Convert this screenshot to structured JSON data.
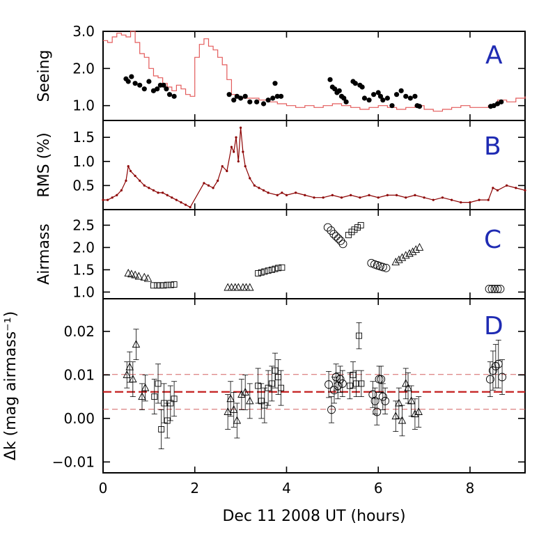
{
  "colors": {
    "seeing_line": "#e35a5a",
    "rms_line": "#8b0000",
    "k_mean": "#c41e1e",
    "k_band": "#d46060",
    "panel_letter": "#1f2bb3",
    "axes": "#000000"
  },
  "x_axis": {
    "label": "Dec 11 2008 UT (hours)",
    "range": [
      0,
      9.2
    ],
    "ticks": [
      0,
      2,
      4,
      6,
      8
    ],
    "tick_labels": [
      "0",
      "2",
      "4",
      "6",
      "8"
    ]
  },
  "chart_data": [
    {
      "type": "line",
      "panel": "A",
      "ylabel": "Seeing",
      "ylim": [
        0.6,
        3.0
      ],
      "yticks": [
        1.0,
        2.0,
        3.0
      ],
      "ytick_labels": [
        "1.0",
        "2.0",
        "3.0"
      ],
      "series": [
        {
          "name": "seeing_monitor",
          "style": "step",
          "x": [
            0.0,
            0.1,
            0.2,
            0.3,
            0.4,
            0.5,
            0.6,
            0.7,
            0.8,
            0.9,
            1.0,
            1.1,
            1.2,
            1.3,
            1.4,
            1.5,
            1.6,
            1.7,
            1.8,
            1.9,
            2.0,
            2.1,
            2.2,
            2.3,
            2.4,
            2.5,
            2.6,
            2.7,
            2.8,
            2.9,
            3.0,
            3.2,
            3.4,
            3.6,
            3.8,
            4.0,
            4.2,
            4.4,
            4.6,
            4.8,
            5.0,
            5.2,
            5.4,
            5.6,
            5.8,
            6.0,
            6.2,
            6.4,
            6.6,
            6.8,
            7.0,
            7.2,
            7.4,
            7.6,
            7.8,
            8.0,
            8.2,
            8.4,
            8.6,
            8.8,
            9.0,
            9.2
          ],
          "values": [
            2.75,
            2.7,
            2.85,
            2.95,
            2.9,
            2.85,
            3.0,
            2.7,
            2.4,
            2.3,
            2.0,
            1.8,
            1.75,
            1.6,
            1.5,
            1.4,
            1.55,
            1.45,
            1.3,
            1.25,
            2.3,
            2.65,
            2.8,
            2.6,
            2.5,
            2.3,
            2.1,
            1.7,
            1.3,
            1.25,
            1.2,
            1.2,
            1.15,
            1.1,
            1.05,
            1.0,
            0.95,
            1.0,
            0.95,
            1.0,
            1.05,
            1.0,
            0.95,
            0.9,
            0.95,
            1.0,
            0.95,
            0.9,
            0.95,
            1.0,
            0.9,
            0.85,
            0.9,
            0.95,
            1.0,
            0.95,
            0.95,
            1.0,
            1.15,
            1.1,
            1.2,
            1.25
          ]
        },
        {
          "name": "measured_seeing",
          "style": "dots",
          "x": [
            0.5,
            0.55,
            0.62,
            0.7,
            0.8,
            0.9,
            1.0,
            1.1,
            1.18,
            1.25,
            1.32,
            1.38,
            1.45,
            1.55,
            2.75,
            2.85,
            2.92,
            3.0,
            3.1,
            3.2,
            3.35,
            3.5,
            3.6,
            3.7,
            3.75,
            3.8,
            3.88,
            4.95,
            5.0,
            5.05,
            5.1,
            5.15,
            5.2,
            5.25,
            5.3,
            5.45,
            5.5,
            5.6,
            5.65,
            5.7,
            5.8,
            5.9,
            6.0,
            6.05,
            6.1,
            6.2,
            6.3,
            6.4,
            6.5,
            6.6,
            6.7,
            6.8,
            6.85,
            6.9,
            8.45,
            8.52,
            8.6,
            8.68
          ],
          "values": [
            1.72,
            1.65,
            1.78,
            1.6,
            1.55,
            1.45,
            1.65,
            1.4,
            1.45,
            1.55,
            1.55,
            1.45,
            1.3,
            1.25,
            1.3,
            1.15,
            1.25,
            1.2,
            1.25,
            1.1,
            1.1,
            1.05,
            1.15,
            1.2,
            1.6,
            1.25,
            1.25,
            1.7,
            1.5,
            1.45,
            1.35,
            1.4,
            1.25,
            1.2,
            1.1,
            1.65,
            1.6,
            1.55,
            1.5,
            1.2,
            1.15,
            1.3,
            1.35,
            1.25,
            1.15,
            1.2,
            1.0,
            1.3,
            1.4,
            1.25,
            1.2,
            1.25,
            1.0,
            0.98,
            0.98,
            1.0,
            1.05,
            1.1
          ]
        }
      ],
      "annotation": "A"
    },
    {
      "type": "line",
      "panel": "B",
      "ylabel": "RMS (%)",
      "ylim": [
        0.0,
        1.85
      ],
      "yticks": [
        0.5,
        1.0,
        1.5
      ],
      "ytick_labels": [
        "0.5",
        "1.0",
        "1.5"
      ],
      "series": [
        {
          "name": "rms",
          "x": [
            0.0,
            0.1,
            0.2,
            0.3,
            0.4,
            0.5,
            0.55,
            0.6,
            0.7,
            0.8,
            0.9,
            1.0,
            1.1,
            1.2,
            1.3,
            1.4,
            1.5,
            1.6,
            1.7,
            1.8,
            1.9,
            2.2,
            2.3,
            2.4,
            2.5,
            2.6,
            2.7,
            2.8,
            2.85,
            2.9,
            2.95,
            3.0,
            3.05,
            3.1,
            3.2,
            3.3,
            3.4,
            3.5,
            3.6,
            3.8,
            3.9,
            4.0,
            4.2,
            4.4,
            4.6,
            4.8,
            5.0,
            5.2,
            5.4,
            5.6,
            5.8,
            6.0,
            6.2,
            6.4,
            6.6,
            6.8,
            7.0,
            7.2,
            7.4,
            7.6,
            7.8,
            8.0,
            8.2,
            8.4,
            8.5,
            8.6,
            8.8,
            9.0,
            9.2
          ],
          "values": [
            0.2,
            0.2,
            0.25,
            0.3,
            0.4,
            0.6,
            0.9,
            0.8,
            0.7,
            0.6,
            0.5,
            0.45,
            0.4,
            0.35,
            0.35,
            0.3,
            0.25,
            0.2,
            0.15,
            0.1,
            0.05,
            0.55,
            0.5,
            0.45,
            0.6,
            0.9,
            0.8,
            1.3,
            1.2,
            1.5,
            1.0,
            1.7,
            1.2,
            0.9,
            0.65,
            0.5,
            0.45,
            0.4,
            0.35,
            0.3,
            0.35,
            0.3,
            0.35,
            0.3,
            0.25,
            0.25,
            0.3,
            0.25,
            0.3,
            0.25,
            0.3,
            0.25,
            0.3,
            0.3,
            0.25,
            0.3,
            0.25,
            0.2,
            0.25,
            0.2,
            0.15,
            0.15,
            0.2,
            0.2,
            0.45,
            0.4,
            0.5,
            0.45,
            0.4
          ]
        }
      ],
      "annotation": "B"
    },
    {
      "type": "scatter",
      "panel": "C",
      "ylabel": "Airmass",
      "ylim": [
        0.85,
        2.85
      ],
      "yticks": [
        1.0,
        1.5,
        2.0,
        2.5
      ],
      "ytick_labels": [
        "1.0",
        "1.5",
        "2.0",
        "2.5"
      ],
      "series": [
        {
          "name": "triangles_1",
          "marker": "triangle",
          "x": [
            0.55,
            0.62,
            0.7,
            0.78,
            0.9,
            0.98
          ],
          "values": [
            1.42,
            1.4,
            1.38,
            1.35,
            1.33,
            1.3
          ]
        },
        {
          "name": "squares_1",
          "marker": "square",
          "x": [
            1.1,
            1.18,
            1.25,
            1.32,
            1.4,
            1.48,
            1.55
          ],
          "values": [
            1.15,
            1.15,
            1.15,
            1.15,
            1.16,
            1.16,
            1.17
          ]
        },
        {
          "name": "triangles_2",
          "marker": "triangle",
          "x": [
            2.72,
            2.8,
            2.88,
            2.95,
            3.05,
            3.12,
            3.2
          ],
          "values": [
            1.1,
            1.1,
            1.1,
            1.1,
            1.1,
            1.1,
            1.1
          ]
        },
        {
          "name": "squares_2",
          "marker": "square",
          "x": [
            3.38,
            3.45,
            3.52,
            3.6,
            3.68,
            3.75,
            3.82,
            3.9
          ],
          "values": [
            1.42,
            1.44,
            1.46,
            1.48,
            1.5,
            1.52,
            1.54,
            1.55
          ]
        },
        {
          "name": "circles_1",
          "marker": "circle",
          "x": [
            4.9,
            4.97,
            5.03,
            5.08,
            5.13,
            5.18,
            5.23
          ],
          "values": [
            2.45,
            2.38,
            2.3,
            2.25,
            2.2,
            2.15,
            2.08
          ]
        },
        {
          "name": "squares_3",
          "marker": "square",
          "x": [
            5.35,
            5.42,
            5.48,
            5.55,
            5.62
          ],
          "values": [
            2.28,
            2.35,
            2.4,
            2.45,
            2.5
          ]
        },
        {
          "name": "circles_2",
          "marker": "circle",
          "x": [
            5.85,
            5.92,
            5.98,
            6.04,
            6.1,
            6.17
          ],
          "values": [
            1.65,
            1.62,
            1.6,
            1.58,
            1.56,
            1.54
          ]
        },
        {
          "name": "triangles_3",
          "marker": "triangle",
          "x": [
            6.38,
            6.45,
            6.52,
            6.6,
            6.68,
            6.75,
            6.82,
            6.9
          ],
          "values": [
            1.67,
            1.72,
            1.77,
            1.82,
            1.86,
            1.9,
            1.95,
            2.0
          ]
        },
        {
          "name": "circles_3",
          "marker": "circle",
          "x": [
            8.42,
            8.48,
            8.54,
            8.6,
            8.66
          ],
          "values": [
            1.07,
            1.07,
            1.07,
            1.07,
            1.07
          ]
        }
      ],
      "annotation": "C"
    },
    {
      "type": "scatter",
      "panel": "D",
      "ylabel": "Δk (mag airmass⁻¹)",
      "ylim": [
        -0.0125,
        0.0275
      ],
      "yticks": [
        -0.01,
        0.0,
        0.01,
        0.02
      ],
      "ytick_labels": [
        "−0.01",
        "0.00",
        "0.01",
        "0.02"
      ],
      "reference_lines": {
        "mean": 0.0061,
        "band": [
          0.0021,
          0.0101
        ]
      },
      "series": [
        {
          "name": "triangles_1",
          "marker": "triangle",
          "x": [
            0.52,
            0.58,
            0.65,
            0.72,
            0.85,
            0.92
          ],
          "values": [
            0.01,
            0.0118,
            0.009,
            0.017,
            0.005,
            0.007
          ],
          "errors": [
            0.003,
            0.0035,
            0.004,
            0.0035,
            0.003,
            0.003
          ]
        },
        {
          "name": "squares_1",
          "marker": "square",
          "x": [
            1.12,
            1.2,
            1.27,
            1.33,
            1.4,
            1.47,
            1.55
          ],
          "values": [
            0.005,
            0.008,
            -0.0025,
            0.0035,
            -0.0005,
            0.0035,
            0.0045
          ],
          "errors": [
            0.004,
            0.0045,
            0.0045,
            0.0045,
            0.004,
            0.004,
            0.004
          ]
        },
        {
          "name": "triangles_2",
          "marker": "triangle",
          "x": [
            2.72,
            2.78,
            2.85,
            2.92,
            3.02,
            3.1,
            3.2
          ],
          "values": [
            0.0015,
            0.0045,
            0.002,
            -0.0005,
            0.0055,
            0.006,
            0.004
          ],
          "errors": [
            0.004,
            0.004,
            0.004,
            0.004,
            0.0035,
            0.004,
            0.004
          ]
        },
        {
          "name": "squares_2",
          "marker": "square",
          "x": [
            3.38,
            3.45,
            3.52,
            3.6,
            3.68,
            3.75,
            3.82,
            3.88
          ],
          "values": [
            0.0075,
            0.004,
            0.003,
            0.007,
            0.008,
            0.011,
            0.0095,
            0.007
          ],
          "errors": [
            0.004,
            0.004,
            0.004,
            0.004,
            0.004,
            0.004,
            0.004,
            0.004
          ]
        },
        {
          "name": "circles_1",
          "marker": "circle",
          "x": [
            4.92,
            4.98,
            5.04,
            5.08,
            5.12,
            5.17,
            5.22
          ],
          "values": [
            0.0078,
            0.002,
            0.0065,
            0.0095,
            0.0075,
            0.009,
            0.008
          ],
          "errors": [
            0.003,
            0.003,
            0.003,
            0.003,
            0.003,
            0.003,
            0.003
          ]
        },
        {
          "name": "squares_3",
          "marker": "square",
          "x": [
            5.38,
            5.45,
            5.52,
            5.58,
            5.63
          ],
          "values": [
            0.0075,
            0.01,
            0.008,
            0.019,
            0.008
          ],
          "errors": [
            0.003,
            0.003,
            0.003,
            0.003,
            0.003
          ]
        },
        {
          "name": "circles_2",
          "marker": "circle",
          "x": [
            5.88,
            5.93,
            5.97,
            6.02,
            6.06,
            6.1,
            6.15
          ],
          "values": [
            0.0055,
            0.004,
            0.0015,
            0.009,
            0.009,
            0.005,
            0.004
          ],
          "errors": [
            0.003,
            0.003,
            0.003,
            0.003,
            0.003,
            0.003,
            0.003
          ]
        },
        {
          "name": "triangles_3",
          "marker": "triangle",
          "x": [
            6.38,
            6.45,
            6.52,
            6.6,
            6.65,
            6.72,
            6.8,
            6.88
          ],
          "values": [
            0.0005,
            0.0035,
            -0.0005,
            0.008,
            0.007,
            0.004,
            0.001,
            0.0015
          ],
          "errors": [
            0.0035,
            0.0035,
            0.0035,
            0.0035,
            0.0035,
            0.0035,
            0.0035,
            0.0035
          ]
        },
        {
          "name": "circles_3",
          "marker": "circle",
          "x": [
            8.44,
            8.5,
            8.56,
            8.62,
            8.7
          ],
          "values": [
            0.009,
            0.011,
            0.012,
            0.0125,
            0.0095
          ],
          "errors": [
            0.004,
            0.0045,
            0.005,
            0.0055,
            0.004
          ]
        }
      ],
      "annotation": "D"
    }
  ]
}
